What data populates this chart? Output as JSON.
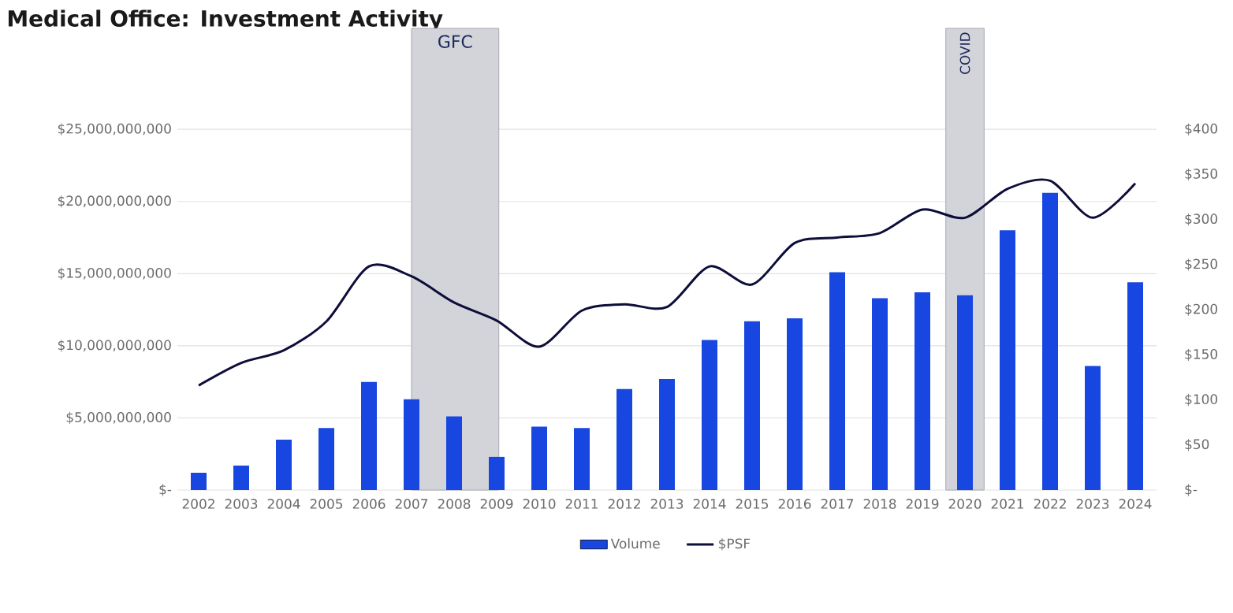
{
  "chart_data": {
    "type": "bar",
    "title": "Medical Office: Investment Activity",
    "categories": [
      "2002",
      "2003",
      "2004",
      "2005",
      "2006",
      "2007",
      "2008",
      "2009",
      "2010",
      "2011",
      "2012",
      "2013",
      "2014",
      "2015",
      "2016",
      "2017",
      "2018",
      "2019",
      "2020",
      "2021",
      "2022",
      "2023",
      "2024"
    ],
    "series": [
      {
        "name": "Volume",
        "color": "#1746e0",
        "values": [
          1200000000.0,
          1700000000.0,
          3500000000.0,
          4300000000.0,
          7500000000.0,
          6300000000.0,
          5100000000.0,
          2300000000.0,
          4400000000.0,
          4300000000.0,
          7000000000.0,
          7700000000.0,
          10400000000.0,
          11700000000.0,
          11900000000.0,
          15100000000.0,
          13300000000.0,
          13700000000.0,
          13500000000.0,
          18000000000.0,
          20600000000.0,
          8600000000.0,
          14400000000.0
        ]
      },
      {
        "name": "$PSF",
        "type": "line",
        "axis": "y2",
        "color": "#0d0d3a",
        "values": [
          116,
          141,
          155,
          187,
          248,
          237,
          208,
          188,
          159,
          199,
          206,
          203,
          248,
          228,
          274,
          280,
          285,
          311,
          302,
          334,
          343,
          302,
          340
        ]
      }
    ],
    "ylim": [
      0,
      32000000000
    ],
    "yticks": [
      {
        "value": 0,
        "label": "$-"
      },
      {
        "value": 5000000000,
        "label": "$5,000,000,000"
      },
      {
        "value": 10000000000,
        "label": "$10,000,000,000"
      },
      {
        "value": 15000000000,
        "label": "$15,000,000,000"
      },
      {
        "value": 20000000000,
        "label": "$20,000,000,000"
      },
      {
        "value": 25000000000,
        "label": "$25,000,000,000"
      }
    ],
    "y2lim": [
      0,
      512
    ],
    "y2ticks": [
      {
        "value": 0,
        "label": "$-"
      },
      {
        "value": 50,
        "label": "$50"
      },
      {
        "value": 100,
        "label": "$100"
      },
      {
        "value": 150,
        "label": "$150"
      },
      {
        "value": 200,
        "label": "$200"
      },
      {
        "value": 250,
        "label": "$250"
      },
      {
        "value": 300,
        "label": "$300"
      },
      {
        "value": 350,
        "label": "$350"
      },
      {
        "value": 400,
        "label": "$400"
      }
    ],
    "bands": [
      {
        "axis": "x",
        "from": "2007",
        "to": "2009",
        "label": "GFC",
        "color": "#d2d4da"
      },
      {
        "axis": "x",
        "from": "2020",
        "to": "2020",
        "label": "COVID",
        "color": "#d2d4da"
      }
    ],
    "grid": "y",
    "legend": "bottom"
  }
}
